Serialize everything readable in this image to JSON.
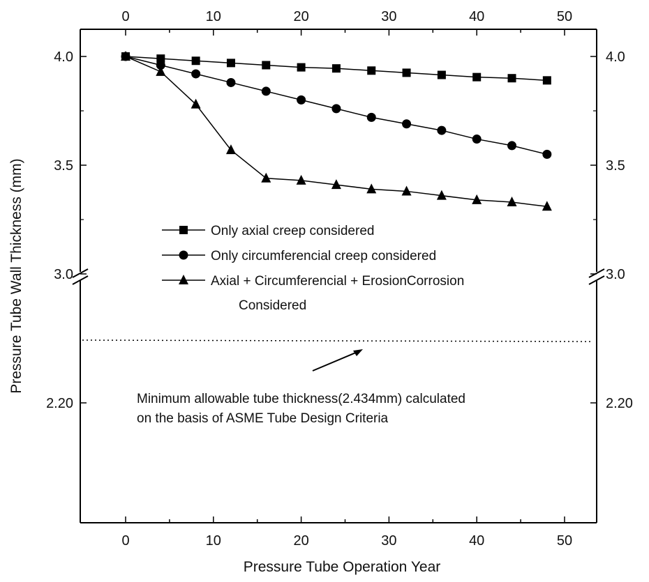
{
  "chart_data": {
    "type": "line",
    "xlabel": "Pressure Tube Operation Year",
    "ylabel": "Pressure Tube Wall Thickness (mm)",
    "x_ticks": [
      "0",
      "10",
      "20",
      "30",
      "40",
      "50"
    ],
    "y_ticks": [
      "4.0",
      "3.5",
      "3.0",
      "2.20"
    ],
    "xlim": [
      -4,
      54
    ],
    "y_axis_break": true,
    "series": [
      {
        "name": "Only axial creep considered",
        "marker": "square",
        "x": [
          0,
          4,
          8,
          12,
          16,
          20,
          24,
          28,
          32,
          36,
          40,
          44,
          48
        ],
        "values": [
          4.0,
          3.99,
          3.98,
          3.97,
          3.96,
          3.95,
          3.945,
          3.935,
          3.925,
          3.915,
          3.905,
          3.9,
          3.89
        ]
      },
      {
        "name": "Only circumferencial creep considered",
        "marker": "circle",
        "x": [
          0,
          4,
          8,
          12,
          16,
          20,
          24,
          28,
          32,
          36,
          40,
          44,
          48
        ],
        "values": [
          4.0,
          3.96,
          3.92,
          3.88,
          3.84,
          3.8,
          3.76,
          3.72,
          3.69,
          3.66,
          3.62,
          3.59,
          3.55
        ]
      },
      {
        "name": "Axial + Circumferencial + ErosionCorrosion",
        "name_line2": "Considered",
        "marker": "triangle",
        "x": [
          0,
          4,
          8,
          12,
          16,
          20,
          24,
          28,
          32,
          36,
          40,
          44,
          48
        ],
        "values": [
          4.0,
          3.93,
          3.78,
          3.57,
          3.44,
          3.43,
          3.41,
          3.39,
          3.38,
          3.36,
          3.34,
          3.33,
          3.31
        ]
      }
    ],
    "reference_line": {
      "value": 2.434,
      "style": "dotted",
      "annotation_line1": "Minimum allowable tube thickness(2.434mm) calculated",
      "annotation_line2": "on the basis of ASME Tube Design Criteria"
    },
    "legend_position": "center"
  }
}
